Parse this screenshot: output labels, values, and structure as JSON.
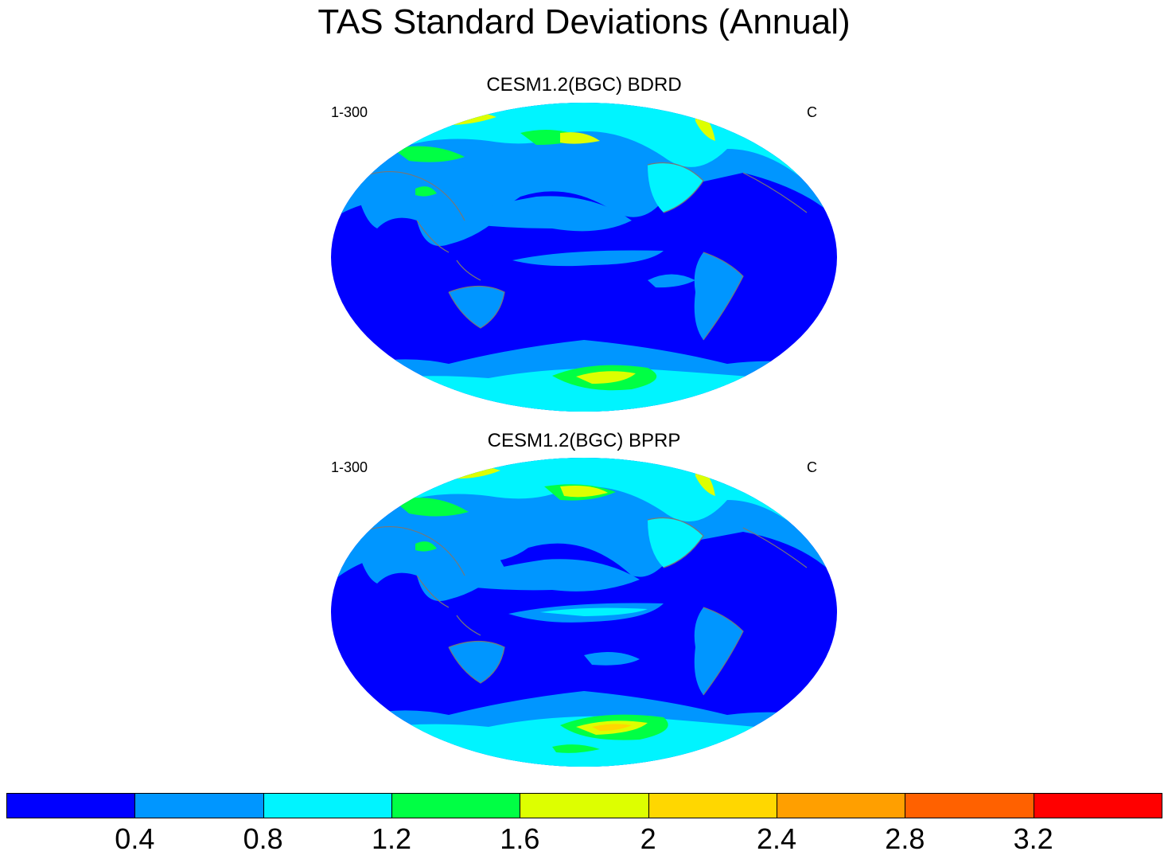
{
  "title": "TAS Standard Deviations (Annual)",
  "panels": [
    {
      "title": "CESM1.2(BGC) BDRD",
      "left_label": "1-300",
      "right_label": "C"
    },
    {
      "title": "CESM1.2(BGC) BPRP",
      "left_label": "1-300",
      "right_label": "C"
    }
  ],
  "colorbar": {
    "labels": [
      "0.4",
      "0.8",
      "1.2",
      "1.6",
      "2",
      "2.4",
      "2.8",
      "3.2"
    ],
    "colors": [
      "#0000ff",
      "#0096ff",
      "#00f4ff",
      "#00ff44",
      "#ddff00",
      "#ffd700",
      "#ff9f00",
      "#ff6100",
      "#ff0000"
    ]
  },
  "colors": {
    "low": "#0000ff",
    "mid_low": "#0096ff",
    "mid": "#00f4ff",
    "mid_high": "#00ff44",
    "high": "#ddff00",
    "higher": "#ffd700",
    "coastline": "#777777"
  }
}
